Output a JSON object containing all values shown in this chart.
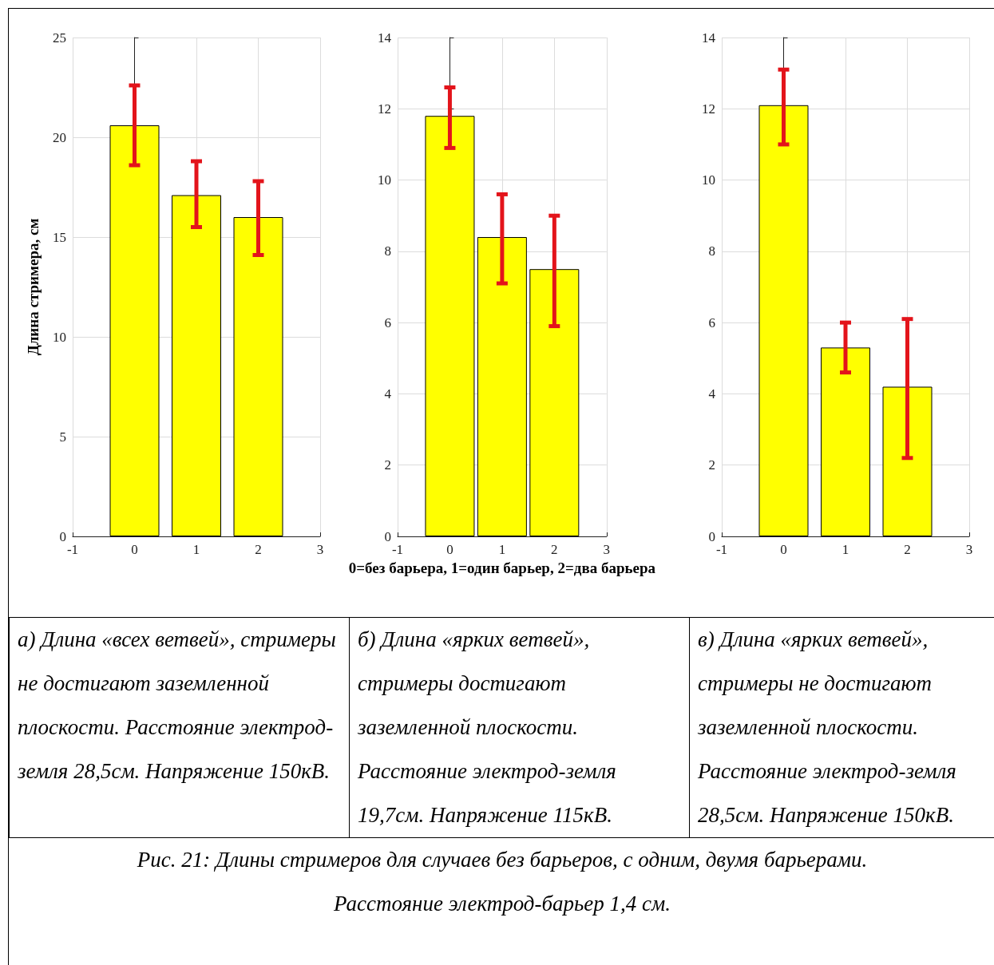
{
  "chart_data": [
    {
      "type": "bar",
      "ylabel": "Длина стримера, см",
      "x": [
        0,
        1,
        2
      ],
      "values": [
        20.6,
        17.1,
        16.0
      ],
      "errors": [
        [
          18.6,
          22.6
        ],
        [
          15.5,
          18.8
        ],
        [
          14.1,
          17.8
        ]
      ],
      "color": "#ffff00",
      "xlim": [
        -1,
        3
      ],
      "xticks": [
        -1,
        0,
        1,
        2,
        3
      ],
      "ylim": [
        0,
        25
      ],
      "yticks": [
        0,
        5,
        10,
        15,
        20,
        25
      ],
      "grid": true,
      "annotations": [
        "а) Длина «всех ветвей», стримеры не достигают заземленной плоскости. Расстояние электрод-земля 28,5см. Напряжение 150кВ."
      ]
    },
    {
      "type": "bar",
      "xlabel": "0=без барьера, 1=один барьер, 2=два барьера",
      "x": [
        0,
        1,
        2
      ],
      "values": [
        11.8,
        8.4,
        7.5
      ],
      "errors": [
        [
          10.9,
          12.6
        ],
        [
          7.1,
          9.6
        ],
        [
          5.9,
          9.0
        ]
      ],
      "color": "#ffff00",
      "xlim": [
        -1,
        3
      ],
      "xticks": [
        -1,
        0,
        1,
        2,
        3
      ],
      "ylim": [
        0,
        14
      ],
      "yticks": [
        0,
        2,
        4,
        6,
        8,
        10,
        12,
        14
      ],
      "grid": true,
      "annotations": [
        "б) Длина «ярких ветвей», стримеры достигают заземленной плоскости. Расстояние электрод-земля 19,7см. Напряжение 115кВ.",
        "Рис. 21: Длины стримеров для случаев без барьеров, с одним, двумя барьерами.",
        "Расстояние электрод-барьер 1,4 см."
      ]
    },
    {
      "type": "bar",
      "x": [
        0,
        1,
        2
      ],
      "values": [
        12.1,
        5.3,
        4.2
      ],
      "errors": [
        [
          11.0,
          13.1
        ],
        [
          4.6,
          6.0
        ],
        [
          2.2,
          6.1
        ]
      ],
      "color": "#ffff00",
      "xlim": [
        -1,
        3
      ],
      "xticks": [
        -1,
        0,
        1,
        2,
        3
      ],
      "ylim": [
        0,
        14
      ],
      "yticks": [
        0,
        2,
        4,
        6,
        8,
        10,
        12,
        14
      ],
      "grid": true,
      "annotations": [
        "в) Длина «ярких ветвей», стримеры не достигают заземленной плоскости. Расстояние электрод-земля 28,5см. Напряжение 150кВ."
      ]
    }
  ]
}
